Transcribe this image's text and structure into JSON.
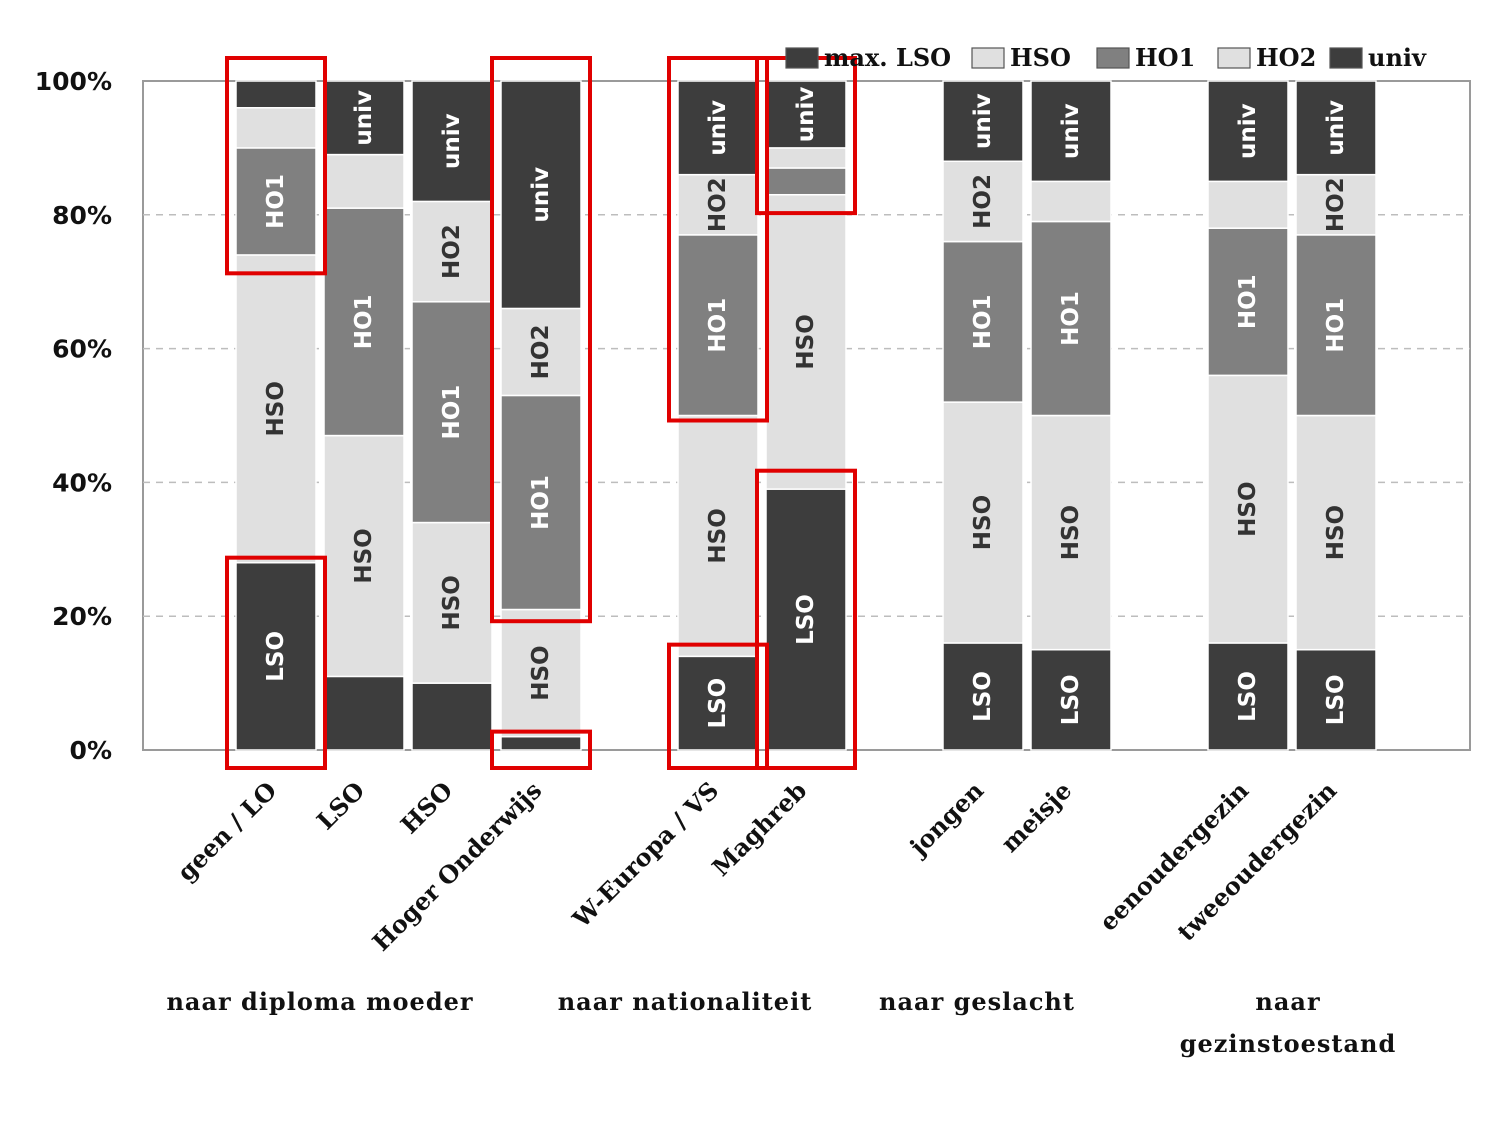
{
  "chart_data": {
    "type": "bar",
    "stacked": true,
    "percent": true,
    "y_axis": {
      "ticks": [
        "0%",
        "20%",
        "40%",
        "60%",
        "80%",
        "100%"
      ],
      "ylim": [
        0,
        100
      ],
      "grid": "dashed"
    },
    "legend": {
      "placement": "top-right",
      "entries": [
        "max. LSO",
        "HSO",
        "HO1",
        "HO2",
        "univ"
      ]
    },
    "series": [
      {
        "name": "LSO",
        "color": "#3d3d3d",
        "label_color": "#ffffff"
      },
      {
        "name": "HSO",
        "color": "#e0e0e0",
        "label_color": "#333333"
      },
      {
        "name": "HO1",
        "color": "#808080",
        "label_color": "#ffffff"
      },
      {
        "name": "HO2",
        "color": "#e0e0e0",
        "label_color": "#333333"
      },
      {
        "name": "univ",
        "color": "#3d3d3d",
        "label_color": "#ffffff"
      }
    ],
    "groups": [
      {
        "label": "naar diploma moeder",
        "categories": [
          "geen / LO",
          "LSO",
          "HSO",
          "Hoger Onderwijs"
        ]
      },
      {
        "label": "naar nationaliteit",
        "categories": [
          "W-Europa / VS",
          "Maghreb"
        ]
      },
      {
        "label": "naar geslacht",
        "categories": [
          "jongen",
          "meisje"
        ]
      },
      {
        "label": "naar gezinstoestand",
        "label_lines": [
          "naar",
          "gezinstoestand"
        ],
        "categories": [
          "eenoudergezin",
          "tweeoudergezin"
        ]
      }
    ],
    "categories": [
      "geen / LO",
      "LSO",
      "HSO",
      "Hoger Onderwijs",
      "W-Europa / VS",
      "Maghreb",
      "jongen",
      "meisje",
      "eenoudergezin",
      "tweeoudergezin"
    ],
    "bars": [
      {
        "category": "geen / LO",
        "values": [
          28,
          46,
          16,
          6,
          4
        ],
        "labels": [
          "LSO",
          "HSO",
          "HO1",
          "",
          ""
        ]
      },
      {
        "category": "LSO",
        "values": [
          11,
          36,
          34,
          8,
          11
        ],
        "labels": [
          "",
          "HSO",
          "HO1",
          "",
          "univ"
        ]
      },
      {
        "category": "HSO",
        "values": [
          10,
          24,
          33,
          15,
          18
        ],
        "labels": [
          "",
          "HSO",
          "HO1",
          "HO2",
          "univ"
        ]
      },
      {
        "category": "Hoger Onderwijs",
        "values": [
          2,
          19,
          32,
          13,
          34
        ],
        "labels": [
          "",
          "HSO",
          "HO1",
          "HO2",
          "univ"
        ]
      },
      {
        "category": "W-Europa / VS",
        "values": [
          14,
          36,
          27,
          9,
          14
        ],
        "labels": [
          "LSO",
          "HSO",
          "HO1",
          "HO2",
          "univ"
        ]
      },
      {
        "category": "Maghreb",
        "values": [
          39,
          44,
          4,
          3,
          10
        ],
        "labels": [
          "LSO",
          "HSO",
          "",
          "",
          "univ"
        ]
      },
      {
        "category": "jongen",
        "values": [
          16,
          36,
          24,
          12,
          12
        ],
        "labels": [
          "LSO",
          "HSO",
          "HO1",
          "HO2",
          "univ"
        ]
      },
      {
        "category": "meisje",
        "values": [
          15,
          35,
          29,
          6,
          15
        ],
        "labels": [
          "LSO",
          "HSO",
          "HO1",
          "",
          "univ"
        ]
      },
      {
        "category": "eenoudergezin",
        "values": [
          16,
          40,
          22,
          7,
          15
        ],
        "labels": [
          "LSO",
          "HSO",
          "HO1",
          "",
          "univ"
        ]
      },
      {
        "category": "tweeoudergezin",
        "values": [
          15,
          35,
          27,
          9,
          14
        ],
        "labels": [
          "LSO",
          "HSO",
          "HO1",
          "HO2",
          "univ"
        ]
      }
    ],
    "annotations": {
      "type": "red-outline-boxes",
      "color": "#e00000",
      "boxes": [
        {
          "category": "geen / LO",
          "from": 0,
          "to": 28
        },
        {
          "category": "geen / LO",
          "from": 72,
          "to": 100
        },
        {
          "category": "Hoger Onderwijs",
          "from": 20,
          "to": 100
        },
        {
          "category": "Hoger Onderwijs",
          "from": 0,
          "to": 2
        },
        {
          "category": "W-Europa / VS",
          "from": 50,
          "to": 100
        },
        {
          "category": "W-Europa / VS",
          "from": 0,
          "to": 15
        },
        {
          "category": "Maghreb",
          "from": 81,
          "to": 100
        },
        {
          "category": "Maghreb",
          "from": 0,
          "to": 41
        }
      ]
    }
  }
}
